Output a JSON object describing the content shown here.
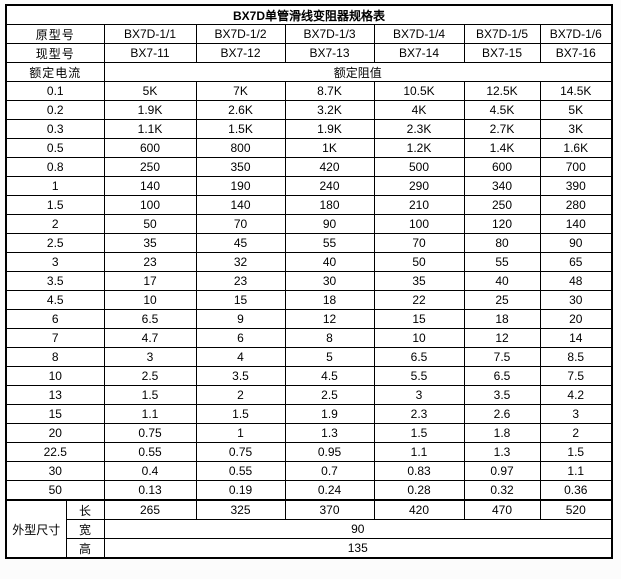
{
  "title": "BX7D单管滑线变阻器规格表",
  "header": {
    "orig_label": "原型号",
    "orig_models": [
      "BX7D-1/1",
      "BX7D-1/2",
      "BX7D-1/3",
      "BX7D-1/4",
      "BX7D-1/5",
      "BX7D-1/6"
    ],
    "current_label": "现型号",
    "current_models": [
      "BX7-11",
      "BX7-12",
      "BX7-13",
      "BX7-14",
      "BX7-15",
      "BX7-16"
    ],
    "rated_current_label": "额定电流",
    "rated_resistance_label": "额定阻值"
  },
  "rows": [
    {
      "current": "0.1",
      "values": [
        "5K",
        "7K",
        "8.7K",
        "10.5K",
        "12.5K",
        "14.5K"
      ]
    },
    {
      "current": "0.2",
      "values": [
        "1.9K",
        "2.6K",
        "3.2K",
        "4K",
        "4.5K",
        "5K"
      ]
    },
    {
      "current": "0.3",
      "values": [
        "1.1K",
        "1.5K",
        "1.9K",
        "2.3K",
        "2.7K",
        "3K"
      ]
    },
    {
      "current": "0.5",
      "values": [
        "600",
        "800",
        "1K",
        "1.2K",
        "1.4K",
        "1.6K"
      ]
    },
    {
      "current": "0.8",
      "values": [
        "250",
        "350",
        "420",
        "500",
        "600",
        "700"
      ]
    },
    {
      "current": "1",
      "values": [
        "140",
        "190",
        "240",
        "290",
        "340",
        "390"
      ]
    },
    {
      "current": "1.5",
      "values": [
        "100",
        "140",
        "180",
        "210",
        "250",
        "280"
      ]
    },
    {
      "current": "2",
      "values": [
        "50",
        "70",
        "90",
        "100",
        "120",
        "140"
      ]
    },
    {
      "current": "2.5",
      "values": [
        "35",
        "45",
        "55",
        "70",
        "80",
        "90"
      ]
    },
    {
      "current": "3",
      "values": [
        "23",
        "32",
        "40",
        "50",
        "55",
        "65"
      ]
    },
    {
      "current": "3.5",
      "values": [
        "17",
        "23",
        "30",
        "35",
        "40",
        "48"
      ]
    },
    {
      "current": "4.5",
      "values": [
        "10",
        "15",
        "18",
        "22",
        "25",
        "30"
      ]
    },
    {
      "current": "6",
      "values": [
        "6.5",
        "9",
        "12",
        "15",
        "18",
        "20"
      ]
    },
    {
      "current": "7",
      "values": [
        "4.7",
        "6",
        "8",
        "10",
        "12",
        "14"
      ]
    },
    {
      "current": "8",
      "values": [
        "3",
        "4",
        "5",
        "6.5",
        "7.5",
        "8.5"
      ]
    },
    {
      "current": "10",
      "values": [
        "2.5",
        "3.5",
        "4.5",
        "5.5",
        "6.5",
        "7.5"
      ]
    },
    {
      "current": "13",
      "values": [
        "1.5",
        "2",
        "2.5",
        "3",
        "3.5",
        "4.2"
      ]
    },
    {
      "current": "15",
      "values": [
        "1.1",
        "1.5",
        "1.9",
        "2.3",
        "2.6",
        "3"
      ]
    },
    {
      "current": "20",
      "values": [
        "0.75",
        "1",
        "1.3",
        "1.5",
        "1.8",
        "2"
      ]
    },
    {
      "current": "22.5",
      "values": [
        "0.55",
        "0.75",
        "0.95",
        "1.1",
        "1.3",
        "1.5"
      ]
    },
    {
      "current": "30",
      "values": [
        "0.4",
        "0.55",
        "0.7",
        "0.83",
        "0.97",
        "1.1"
      ]
    },
    {
      "current": "50",
      "values": [
        "0.13",
        "0.19",
        "0.24",
        "0.28",
        "0.32",
        "0.36"
      ]
    }
  ],
  "dimensions": {
    "label": "外型尺寸",
    "length_label": "长",
    "length_values": [
      "265",
      "325",
      "370",
      "420",
      "470",
      "520"
    ],
    "width_label": "宽",
    "width_value": "90",
    "height_label": "高",
    "height_value": "135"
  }
}
